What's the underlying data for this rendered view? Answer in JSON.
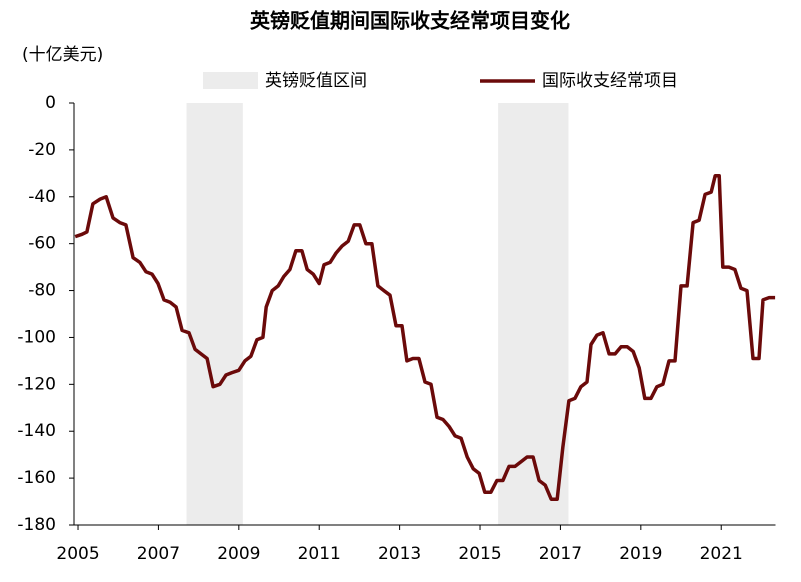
{
  "chart_data": {
    "type": "line",
    "title": "英镑贬值期间国际收支经常项目变化",
    "y_label": "(十亿美元)",
    "x": [
      2004.93,
      2005.1,
      2005.22,
      2005.37,
      2005.55,
      2005.7,
      2005.87,
      2006.04,
      2006.19,
      2006.37,
      2006.54,
      2006.69,
      2006.84,
      2006.99,
      2007.14,
      2007.29,
      2007.44,
      2007.59,
      2007.76,
      2007.91,
      2008.06,
      2008.21,
      2008.36,
      2008.53,
      2008.68,
      2008.83,
      2009.0,
      2009.15,
      2009.3,
      2009.45,
      2009.6,
      2009.68,
      2009.83,
      2009.98,
      2010.12,
      2010.27,
      2010.42,
      2010.57,
      2010.7,
      2010.85,
      2011.0,
      2011.12,
      2011.27,
      2011.42,
      2011.57,
      2011.72,
      2011.87,
      2012.01,
      2012.16,
      2012.31,
      2012.46,
      2012.61,
      2012.76,
      2012.91,
      2013.06,
      2013.18,
      2013.33,
      2013.48,
      2013.63,
      2013.78,
      2013.93,
      2014.08,
      2014.23,
      2014.38,
      2014.53,
      2014.68,
      2014.83,
      2014.98,
      2015.12,
      2015.27,
      2015.42,
      2015.57,
      2015.72,
      2015.87,
      2016.02,
      2016.17,
      2016.32,
      2016.47,
      2016.62,
      2016.77,
      2016.92,
      2017.06,
      2017.21,
      2017.36,
      2017.51,
      2017.66,
      2017.76,
      2017.91,
      2018.06,
      2018.21,
      2018.36,
      2018.51,
      2018.66,
      2018.81,
      2018.96,
      2019.1,
      2019.25,
      2019.4,
      2019.55,
      2019.7,
      2019.85,
      2020.0,
      2020.15,
      2020.3,
      2020.45,
      2020.6,
      2020.75,
      2020.85,
      2020.95,
      2021.04,
      2021.19,
      2021.34,
      2021.49,
      2021.64,
      2021.79,
      2021.94,
      2022.04,
      2022.19,
      2022.34
    ],
    "series": [
      {
        "name": "国际收支经常项目",
        "color": "#6b0a0a",
        "values": [
          -57,
          -56,
          -55,
          -43,
          -41,
          -40,
          -49,
          -51,
          -52,
          -66,
          -68,
          -72,
          -73,
          -77,
          -84,
          -85,
          -87,
          -97,
          -98,
          -105,
          -107,
          -109,
          -121,
          -120,
          -116,
          -115,
          -114,
          -110,
          -108,
          -101,
          -100,
          -87,
          -80,
          -78,
          -74,
          -71,
          -63,
          -63,
          -71,
          -73,
          -77,
          -69,
          -68,
          -64,
          -61,
          -59,
          -52,
          -52,
          -60,
          -60,
          -78,
          -80,
          -82,
          -95,
          -95,
          -110,
          -109,
          -109,
          -119,
          -120,
          -134,
          -135,
          -138,
          -142,
          -143,
          -151,
          -156,
          -158,
          -166,
          -166,
          -161,
          -161,
          -155,
          -155,
          -153,
          -151,
          -151,
          -161,
          -163,
          -169,
          -169,
          -147,
          -127,
          -126,
          -121,
          -119,
          -103,
          -99,
          -98,
          -107,
          -107,
          -104,
          -104,
          -106,
          -113,
          -126,
          -126,
          -121,
          -120,
          -110,
          -110,
          -78,
          -78,
          -51,
          -50,
          -39,
          -38,
          -31,
          -31,
          -70,
          -70,
          -71,
          -79,
          -80,
          -109,
          -109,
          -84,
          -83,
          -83
        ]
      }
    ],
    "bands": {
      "name": "英镑贬值区间",
      "color": "#ececec",
      "ranges": [
        [
          2007.7,
          2009.1
        ],
        [
          2015.45,
          2017.2
        ]
      ]
    },
    "xlim": [
      2004.9,
      2022.35
    ],
    "xticks": [
      2005,
      2007,
      2009,
      2011,
      2013,
      2015,
      2017,
      2019,
      2021
    ],
    "ylim": [
      -180,
      0
    ],
    "yticks": [
      0,
      -20,
      -40,
      -60,
      -80,
      -100,
      -120,
      -140,
      -160,
      -180
    ]
  }
}
